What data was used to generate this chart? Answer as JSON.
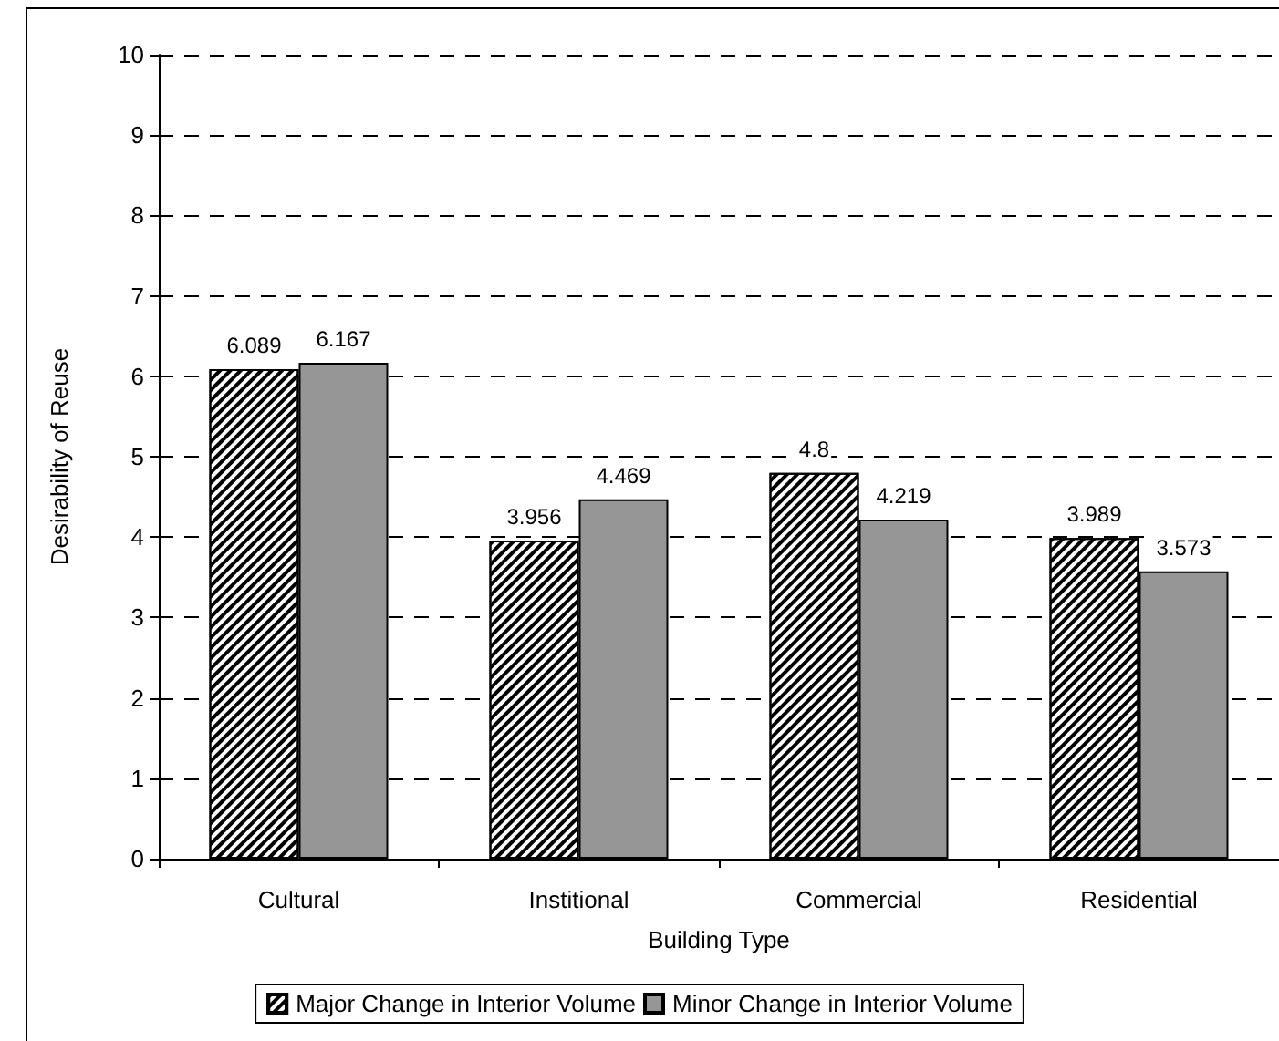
{
  "chart_data": {
    "type": "bar",
    "xlabel": "Building Type",
    "ylabel": "Desirability of Reuse",
    "categories": [
      "Cultural",
      "Institional",
      "Commercial",
      "Residential"
    ],
    "series": [
      {
        "name": "Major Change in Interior Volume",
        "color": "#ffffff",
        "values": [
          6.089,
          3.956,
          4.8,
          3.989
        ]
      },
      {
        "name": "Minor Change in Interior Volume",
        "color": "#969696",
        "values": [
          6.167,
          4.469,
          4.219,
          3.573
        ]
      }
    ],
    "ylim": [
      0,
      10
    ],
    "yticks": [
      0,
      1,
      2,
      3,
      4,
      5,
      6,
      7,
      8,
      9,
      10
    ],
    "grid": "y",
    "legend": "bottom",
    "data_labels": true
  }
}
